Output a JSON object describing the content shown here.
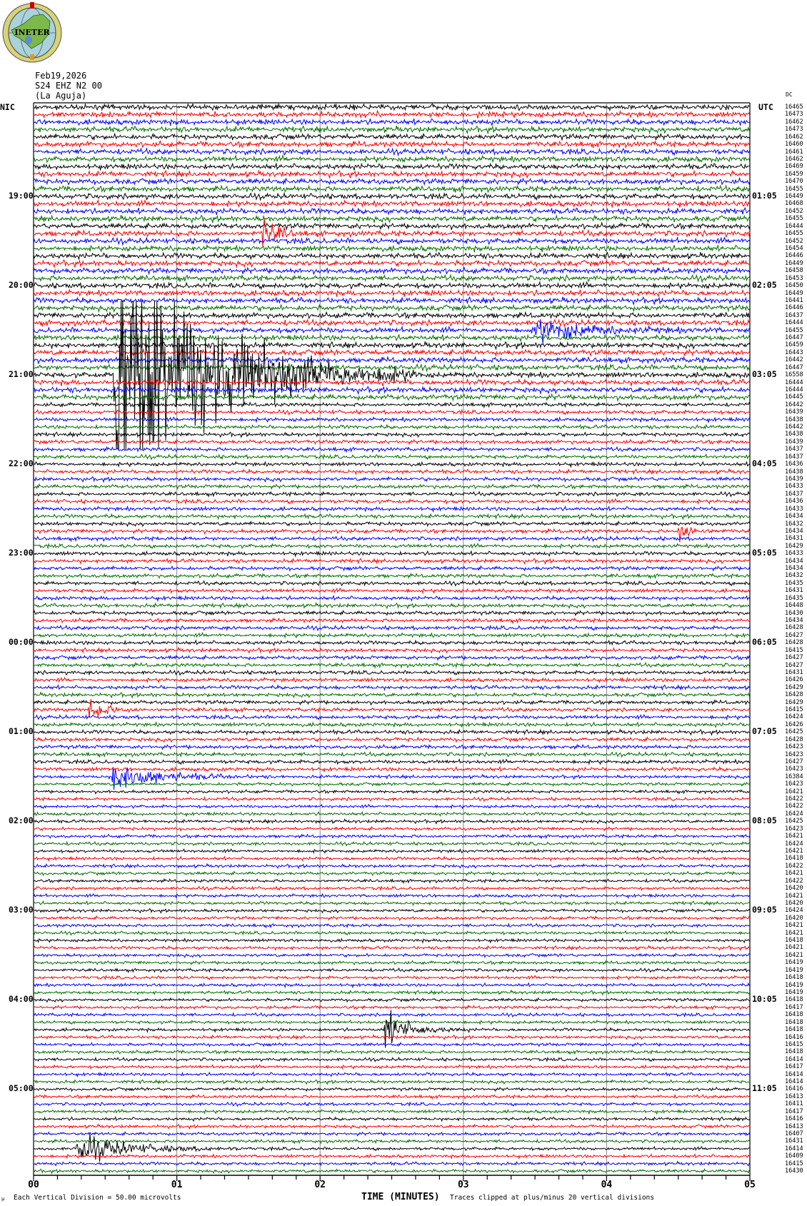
{
  "logo": {
    "text": "INETER",
    "colors": {
      "ring": "#d9d277",
      "globe": "#a9d3da",
      "land": "#7db84a",
      "lake": "#5a8fd0"
    }
  },
  "header": {
    "date": "Feb19,2026",
    "station": "S24 EHZ N2 00",
    "location": "(La Aguja)"
  },
  "left_zone_label": "NIC",
  "right_zone_label": "UTC",
  "top_right_note": "DC",
  "left_hour_labels": [
    "19:00",
    "20:00",
    "21:00",
    "22:00",
    "23:00",
    "00:00",
    "01:00",
    "02:00",
    "03:00",
    "04:00",
    "05:00"
  ],
  "right_hour_labels": [
    "01:05",
    "02:05",
    "03:05",
    "04:05",
    "05:05",
    "06:05",
    "07:05",
    "08:05",
    "09:05",
    "10:05",
    "11:05"
  ],
  "footer": {
    "scale_note": "Each Vertical Division =   50.00 microvolts",
    "xlabel": "TIME (MINUTES)",
    "clip_note": "Traces clipped at plus/minus 20 vertical divisions",
    "corner_mark": "µ"
  },
  "chart_data": {
    "type": "line",
    "subtype": "helicorder",
    "xlabel": "TIME (MINUTES)",
    "x_ticks": [
      "00",
      "01",
      "02",
      "03",
      "04",
      "05"
    ],
    "xlim": [
      0,
      5
    ],
    "minor_ticks_per_minute": 6,
    "rows": 144,
    "minutes_per_row": 5,
    "grid": "vertical lines at each minute",
    "trace_colors": [
      "#000000",
      "#ff0000",
      "#0000ff",
      "#007000"
    ],
    "row_values": [
      16465,
      16473,
      16462,
      16473,
      16462,
      16460,
      16461,
      16462,
      16469,
      16459,
      16470,
      16455,
      16449,
      16468,
      16452,
      16455,
      16444,
      16455,
      16452,
      16454,
      16446,
      16449,
      16458,
      16453,
      16450,
      16449,
      16441,
      16446,
      16437,
      16444,
      16455,
      16447,
      16459,
      16443,
      16442,
      16447,
      16558,
      16444,
      16444,
      16445,
      16442,
      16439,
      16438,
      16442,
      16438,
      16439,
      16437,
      16437,
      16436,
      16438,
      16439,
      16433,
      16437,
      16436,
      16433,
      16434,
      16432,
      16434,
      16431,
      16429,
      16433,
      16434,
      16434,
      16432,
      16435,
      16431,
      16435,
      16448,
      16430,
      16434,
      16428,
      16427,
      16428,
      16415,
      16427,
      16427,
      16431,
      16426,
      16429,
      16428,
      16429,
      16415,
      16424,
      16426,
      16425,
      16428,
      16423,
      16423,
      16427,
      16423,
      16384,
      16423,
      16421,
      16422,
      16422,
      16424,
      16425,
      16423,
      16421,
      16424,
      16421,
      16418,
      16422,
      16421,
      16422,
      16420,
      16421,
      16420,
      16424,
      16420,
      16421,
      16421,
      16418,
      16421,
      16421,
      16419,
      16419,
      16418,
      16419,
      16419,
      16418,
      16417,
      16418,
      16418,
      16418,
      16416,
      16415,
      16418,
      16414,
      16417,
      16414,
      16414,
      16416,
      16413,
      16411,
      16417,
      16416,
      16413,
      16407,
      16431,
      16414,
      16409,
      16415,
      16430
    ],
    "events": [
      {
        "row": 36,
        "start_min": 0.56,
        "end_min": 2.7,
        "peak_divisions": 20
      },
      {
        "row": 90,
        "start_min": 0.55,
        "end_min": 1.65,
        "peak_divisions": 2
      },
      {
        "row": 81,
        "start_min": 0.38,
        "end_min": 0.85,
        "peak_divisions": 1.5
      },
      {
        "row": 124,
        "start_min": 2.45,
        "end_min": 3.05,
        "peak_divisions": 2.5
      },
      {
        "row": 57,
        "start_min": 4.5,
        "end_min": 4.85,
        "peak_divisions": 1.5
      },
      {
        "row": 140,
        "start_min": 0.3,
        "end_min": 1.5,
        "peak_divisions": 2
      },
      {
        "row": 17,
        "start_min": 1.6,
        "end_min": 1.95,
        "peak_divisions": 2
      },
      {
        "row": 30,
        "start_min": 3.5,
        "end_min": 4.8,
        "peak_divisions": 1.5
      }
    ]
  }
}
